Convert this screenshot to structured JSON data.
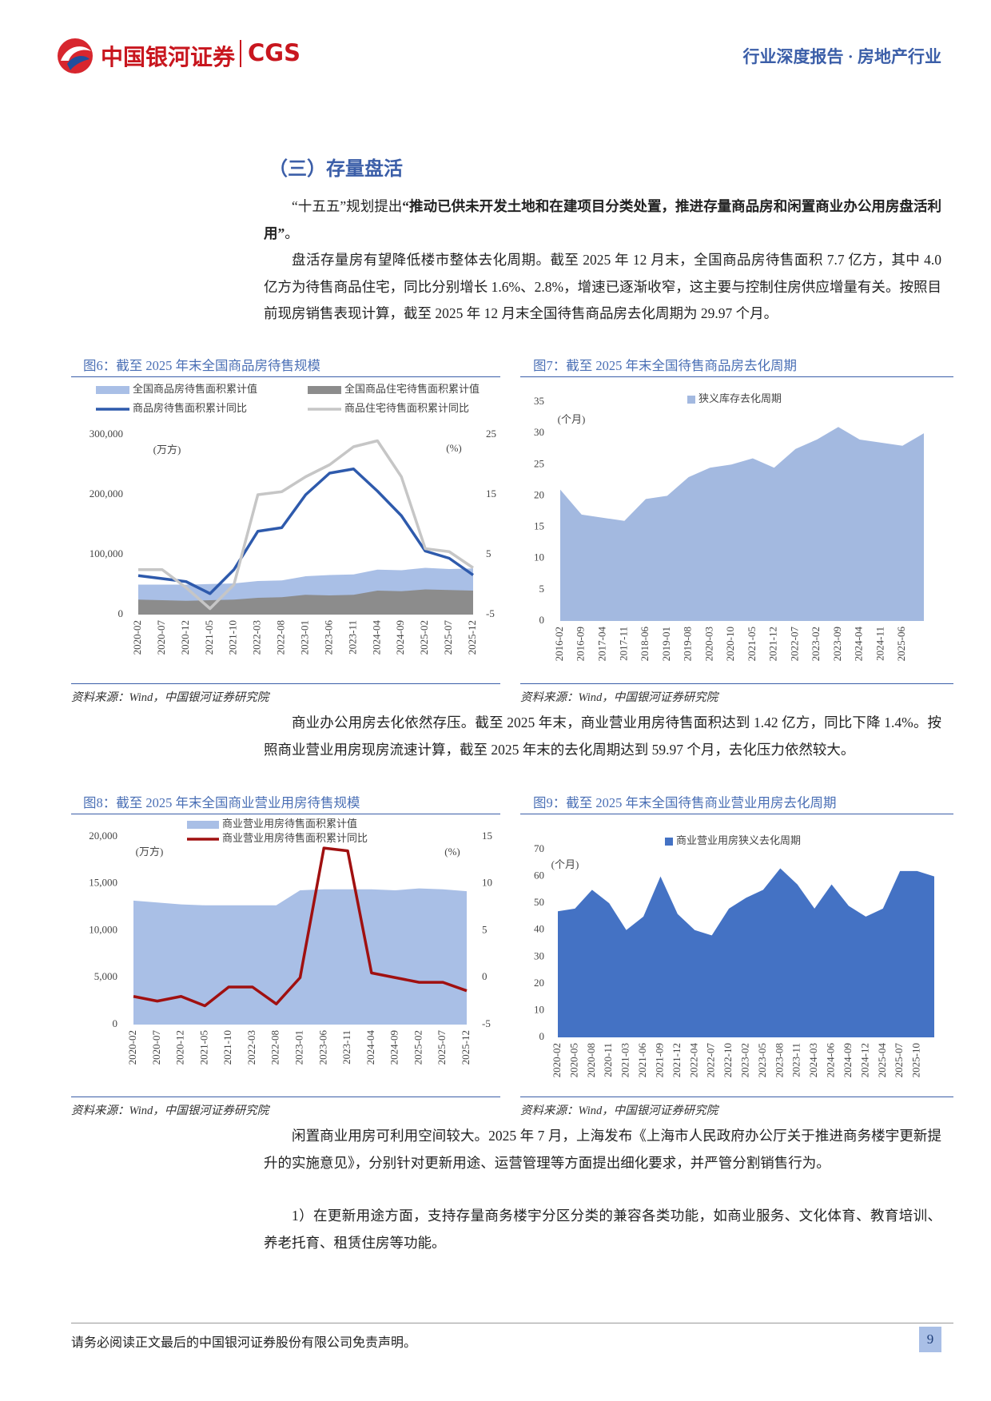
{
  "header": {
    "brand": "中国银河证券",
    "brand_en": "CGS",
    "report": "行业深度报告 · 房地产行业"
  },
  "section_title": "（三）存量盘活",
  "paragraphs": [
    {
      "before": "“十五五”规划提出",
      "bold": "“推动已供未开发土地和在建项目分类处置，推进存量商品房和闲置商业办公用房盘活利用”",
      "after": "。"
    },
    {
      "text": "盘活存量房有望降低楼市整体去化周期。截至 2025 年 12 月末，全国商品房待售面积 7.7 亿方，其中 4.0 亿方为待售商品住宅，同比分别增长 1.6%、2.8%，增速已逐渐收窄，这主要与控制住房供应增量有关。按照目前现房销售表现计算，截至 2025 年 12 月末全国待售商品房去化周期为 29.97 个月。"
    },
    {
      "text": "商业办公用房去化依然存压。截至 2025 年末，商业营业用房待售面积达到 1.42 亿方，同比下降 1.4%。按照商业营业用房现房流速计算，截至 2025 年末的去化周期达到 59.97 个月，去化压力依然较大。"
    },
    {
      "text": "闲置商业用房可利用空间较大。2025 年 7 月，上海发布《上海市人民政府办公厅关于推进商务楼宇更新提升的实施意见》，分别针对更新用途、运营管理等方面提出细化要求，并严管分割销售行为。"
    },
    {
      "text": "1）在更新用途方面，支持存量商务楼宇分区分类的兼容各类功能，如商业服务、文化体育、教育培训、养老托育、租赁住房等功能。"
    }
  ],
  "chart_data": [
    {
      "type": "combo",
      "title": "图6：截至 2025 年末全国商品房待售规模",
      "source": "资料来源：Wind，中国银河证券研究院",
      "y_label": "(万方)",
      "y2_label": "(%)",
      "categories": [
        "2020-02",
        "2020-07",
        "2020-12",
        "2021-05",
        "2021-10",
        "2022-03",
        "2022-08",
        "2023-01",
        "2023-06",
        "2023-11",
        "2024-04",
        "2024-09",
        "2025-02",
        "2025-07",
        "2025-12"
      ],
      "series": [
        {
          "name": "全国商品房待售面积累计值",
          "type": "area",
          "color": "#a9bfe6",
          "values": [
            50000,
            50000,
            50000,
            51000,
            52000,
            56000,
            57000,
            64000,
            66000,
            67000,
            75000,
            74000,
            78000,
            76000,
            77000
          ]
        },
        {
          "name": "全国商品住宅待售面积累计值",
          "type": "area",
          "color": "#8c8c8c",
          "values": [
            25000,
            24000,
            23000,
            24000,
            25000,
            28000,
            29000,
            33000,
            32000,
            33000,
            40000,
            39000,
            42000,
            41000,
            40000
          ]
        },
        {
          "name": "商品房待售面积累计同比",
          "type": "line",
          "axis": "y2",
          "color": "#2e5aac",
          "values": [
            1.5,
            1.0,
            0.5,
            -1.5,
            2.5,
            8.9,
            9.5,
            15,
            18.6,
            19.3,
            15.6,
            11.5,
            5.6,
            4.4,
            1.6
          ]
        },
        {
          "name": "商品住宅待售面积累计同比",
          "type": "line",
          "axis": "y2",
          "color": "#c6c6c6",
          "values": [
            2.5,
            2.5,
            -0.5,
            -4,
            0,
            15,
            15.5,
            18,
            20,
            23,
            24,
            18,
            6,
            5.5,
            2.8
          ]
        }
      ],
      "ylim": [
        0,
        300000
      ],
      "yticks": [
        0,
        {
          "value": 100000,
          "label": "100,000"
        },
        {
          "value": 200000,
          "label": "200,000"
        },
        {
          "value": 300000,
          "label": "300,000"
        }
      ],
      "y2lim": [
        -5,
        25
      ],
      "y2ticks": [
        -5,
        5,
        15,
        25
      ]
    },
    {
      "type": "area",
      "title": "图7：截至 2025 年末全国待售商品房去化周期",
      "source": "资料来源：Wind，中国银河证券研究院",
      "y_label": "(个月)",
      "categories": [
        "2016-02",
        "2016-09",
        "2017-04",
        "2017-11",
        "2018-06",
        "2019-01",
        "2019-08",
        "2020-03",
        "2020-10",
        "2021-05",
        "2021-12",
        "2022-07",
        "2023-02",
        "2023-09",
        "2024-04",
        "2024-11",
        "2025-06",
        null
      ],
      "series": [
        {
          "name": "狭义库存去化周期",
          "color": "#a3b9e0",
          "values": [
            21,
            17,
            16.5,
            16,
            19.5,
            20,
            23,
            24.5,
            25,
            26,
            24.5,
            27.5,
            29,
            31,
            29,
            28.5,
            28,
            30
          ]
        }
      ],
      "ylim": [
        0,
        35
      ],
      "yticks": [
        0,
        5,
        10,
        15,
        20,
        25,
        30,
        35
      ]
    },
    {
      "type": "combo",
      "title": "图8：截至 2025 年末全国商业营业用房待售规模",
      "source": "资料来源：Wind，中国银河证券研究院",
      "y_label": "(万方)",
      "y2_label": "(%)",
      "categories": [
        "2020-02",
        "2020-07",
        "2020-12",
        "2021-05",
        "2021-10",
        "2022-03",
        "2022-08",
        "2023-01",
        "2023-06",
        "2023-11",
        "2024-04",
        "2024-09",
        "2025-02",
        "2025-07",
        "2025-12"
      ],
      "series": [
        {
          "name": "商业营业用房待售面积累计值",
          "type": "area",
          "color": "#a9bfe6",
          "values": [
            13200,
            13000,
            12800,
            12700,
            12700,
            12700,
            12700,
            14300,
            14400,
            14400,
            14400,
            14300,
            14500,
            14400,
            14200
          ]
        },
        {
          "name": "商业营业用房待售面积累计同比",
          "type": "line",
          "axis": "y2",
          "color": "#a01010",
          "values": [
            -2,
            -2.5,
            -2,
            -3,
            -1,
            -1,
            -2.8,
            0,
            13.8,
            13.5,
            0.5,
            0,
            -0.5,
            -0.5,
            -1.4
          ]
        }
      ],
      "ylim": [
        0,
        20000
      ],
      "yticks": [
        0,
        {
          "value": 5000,
          "label": "5,000"
        },
        {
          "value": 10000,
          "label": "10,000"
        },
        {
          "value": 15000,
          "label": "15,000"
        },
        {
          "value": 20000,
          "label": "20,000"
        }
      ],
      "y2lim": [
        -5,
        15
      ],
      "y2ticks": [
        -5,
        0,
        5,
        10,
        15
      ]
    },
    {
      "type": "area",
      "title": "图9：截至 2025 年末全国待售商业营业用房去化周期",
      "source": "资料来源：Wind，中国银河证券研究院",
      "y_label": "(个月)",
      "categories": [
        "2020-02",
        "2020-05",
        "2020-08",
        "2020-11",
        "2021-03",
        "2021-06",
        "2021-09",
        "2021-12",
        "2022-04",
        "2022-07",
        "2022-10",
        "2023-02",
        "2023-05",
        "2023-08",
        "2023-11",
        "2024-03",
        "2024-06",
        "2024-09",
        "2024-12",
        "2025-04",
        "2025-07",
        "2025-10",
        null
      ],
      "series": [
        {
          "name": "商业营业用房狭义去化周期",
          "color": "#4472c4",
          "values": [
            47,
            48,
            55,
            50,
            40,
            45,
            60,
            46,
            40,
            38,
            48,
            52,
            55,
            63,
            57,
            48,
            57,
            49,
            45,
            48,
            62,
            62,
            60
          ]
        }
      ],
      "ylim": [
        0,
        70
      ],
      "yticks": [
        0,
        10,
        20,
        30,
        40,
        50,
        60,
        70
      ]
    }
  ],
  "footer": {
    "disclaimer": "请务必阅读正文最后的中国银河证券股份有限公司免责声明。",
    "page": "9"
  }
}
